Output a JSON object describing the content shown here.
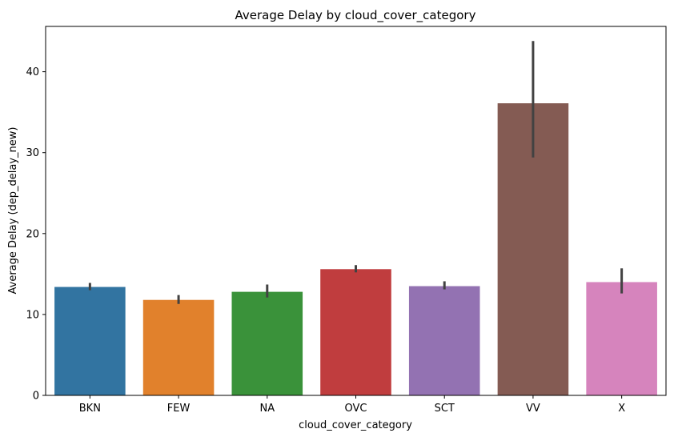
{
  "chart_data": {
    "type": "bar",
    "title": "Average Delay by cloud_cover_category",
    "xlabel": "cloud_cover_category",
    "ylabel": "Average Delay (dep_delay_new)",
    "categories": [
      "BKN",
      "FEW",
      "NA",
      "OVC",
      "SCT",
      "VV",
      "X"
    ],
    "values": [
      13.4,
      11.8,
      12.8,
      15.6,
      13.5,
      36.1,
      14.0
    ],
    "error_low": [
      13.0,
      11.3,
      12.1,
      15.2,
      13.1,
      29.4,
      12.6
    ],
    "error_high": [
      13.9,
      12.4,
      13.7,
      16.1,
      14.1,
      43.8,
      15.7
    ],
    "colors": [
      "#3274a1",
      "#e1812c",
      "#3a923a",
      "#c03d3e",
      "#9372b2",
      "#845b53",
      "#d684bd"
    ],
    "ylim": [
      0,
      45.6
    ],
    "yticks": [
      0,
      10,
      20,
      30,
      40
    ],
    "grid": false,
    "legend": "none"
  }
}
